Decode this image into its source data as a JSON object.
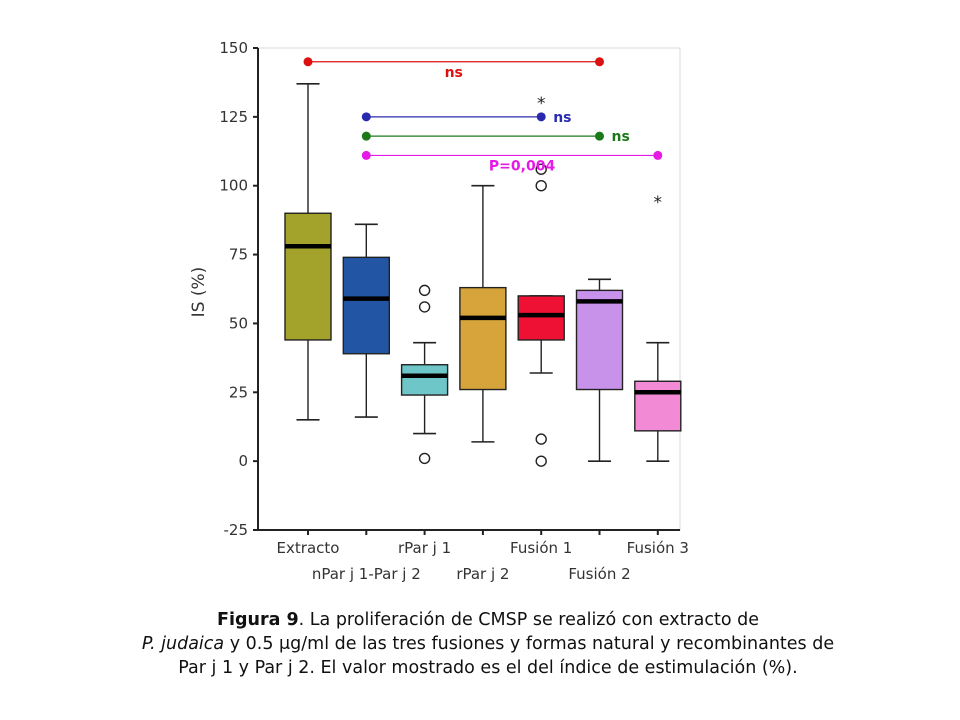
{
  "chart_data": {
    "type": "box",
    "ylabel": "IS (%)",
    "ylim": [
      -25,
      150
    ],
    "yticks": [
      -25,
      0,
      25,
      50,
      75,
      100,
      125,
      150
    ],
    "categories": [
      "Extracto",
      "nPar j 1-Par j 2",
      "rPar j 1",
      "rPar j 2",
      "Fusión 1",
      "Fusión 2",
      "Fusión 3"
    ],
    "boxes": [
      {
        "name": "Extracto",
        "whisker_low": 15,
        "q1": 44,
        "median": 78,
        "q3": 90,
        "whisker_high": 137,
        "outliers": [],
        "extremes": [],
        "color": "#a3a22b"
      },
      {
        "name": "nPar j 1-Par j 2",
        "whisker_low": 16,
        "q1": 39,
        "median": 59,
        "q3": 74,
        "whisker_high": 86,
        "outliers": [],
        "extremes": [],
        "color": "#2255a4"
      },
      {
        "name": "rPar j 1",
        "whisker_low": 10,
        "q1": 24,
        "median": 31,
        "q3": 35,
        "whisker_high": 43,
        "outliers": [
          1,
          56,
          62
        ],
        "extremes": [],
        "color": "#6ec6c8"
      },
      {
        "name": "rPar j 2",
        "whisker_low": 7,
        "q1": 26,
        "median": 52,
        "q3": 63,
        "whisker_high": 100,
        "outliers": [],
        "extremes": [],
        "color": "#d6a43a"
      },
      {
        "name": "Fusión 1",
        "whisker_low": 32,
        "q1": 44,
        "median": 53,
        "q3": 60,
        "whisker_high": 60,
        "outliers": [
          0,
          8,
          100,
          106
        ],
        "extremes": [
          130
        ],
        "color": "#ee1133"
      },
      {
        "name": "Fusión 2",
        "whisker_low": 0,
        "q1": 26,
        "median": 58,
        "q3": 62,
        "whisker_high": 66,
        "outliers": [],
        "extremes": [],
        "color": "#c992ea"
      },
      {
        "name": "Fusión 3",
        "whisker_low": 0,
        "q1": 11,
        "median": 25,
        "q3": 29,
        "whisker_high": 43,
        "outliers": [],
        "extremes": [
          94
        ],
        "color": "#f28ad6"
      }
    ],
    "comparisons": [
      {
        "from": "Extracto",
        "to": "Fusión 2",
        "y": 145,
        "label": "ns",
        "color": "#dd1111"
      },
      {
        "from": "nPar j 1-Par j 2",
        "to": "Fusión 1",
        "y": 125,
        "label": "ns",
        "color": "#2a2ab0"
      },
      {
        "from": "nPar j 1-Par j 2",
        "to": "Fusión 2",
        "y": 118,
        "label": "ns",
        "color": "#1a7a1a"
      },
      {
        "from": "nPar j 1-Par j 2",
        "to": "Fusión 3",
        "y": 111,
        "label": "P=0,004",
        "color": "#e61ae6"
      }
    ]
  },
  "caption": {
    "figure_label": "Figura 9",
    "text_1": ". La proliferación de CMSP se realizó con extracto de",
    "species": "P. judaica",
    "text_2": " y 0.5 μg/ml de las tres fusiones y formas natural y recombinantes de Par j 1 y Par j 2. El valor mostrado es el del índice de estimulación (%)."
  }
}
